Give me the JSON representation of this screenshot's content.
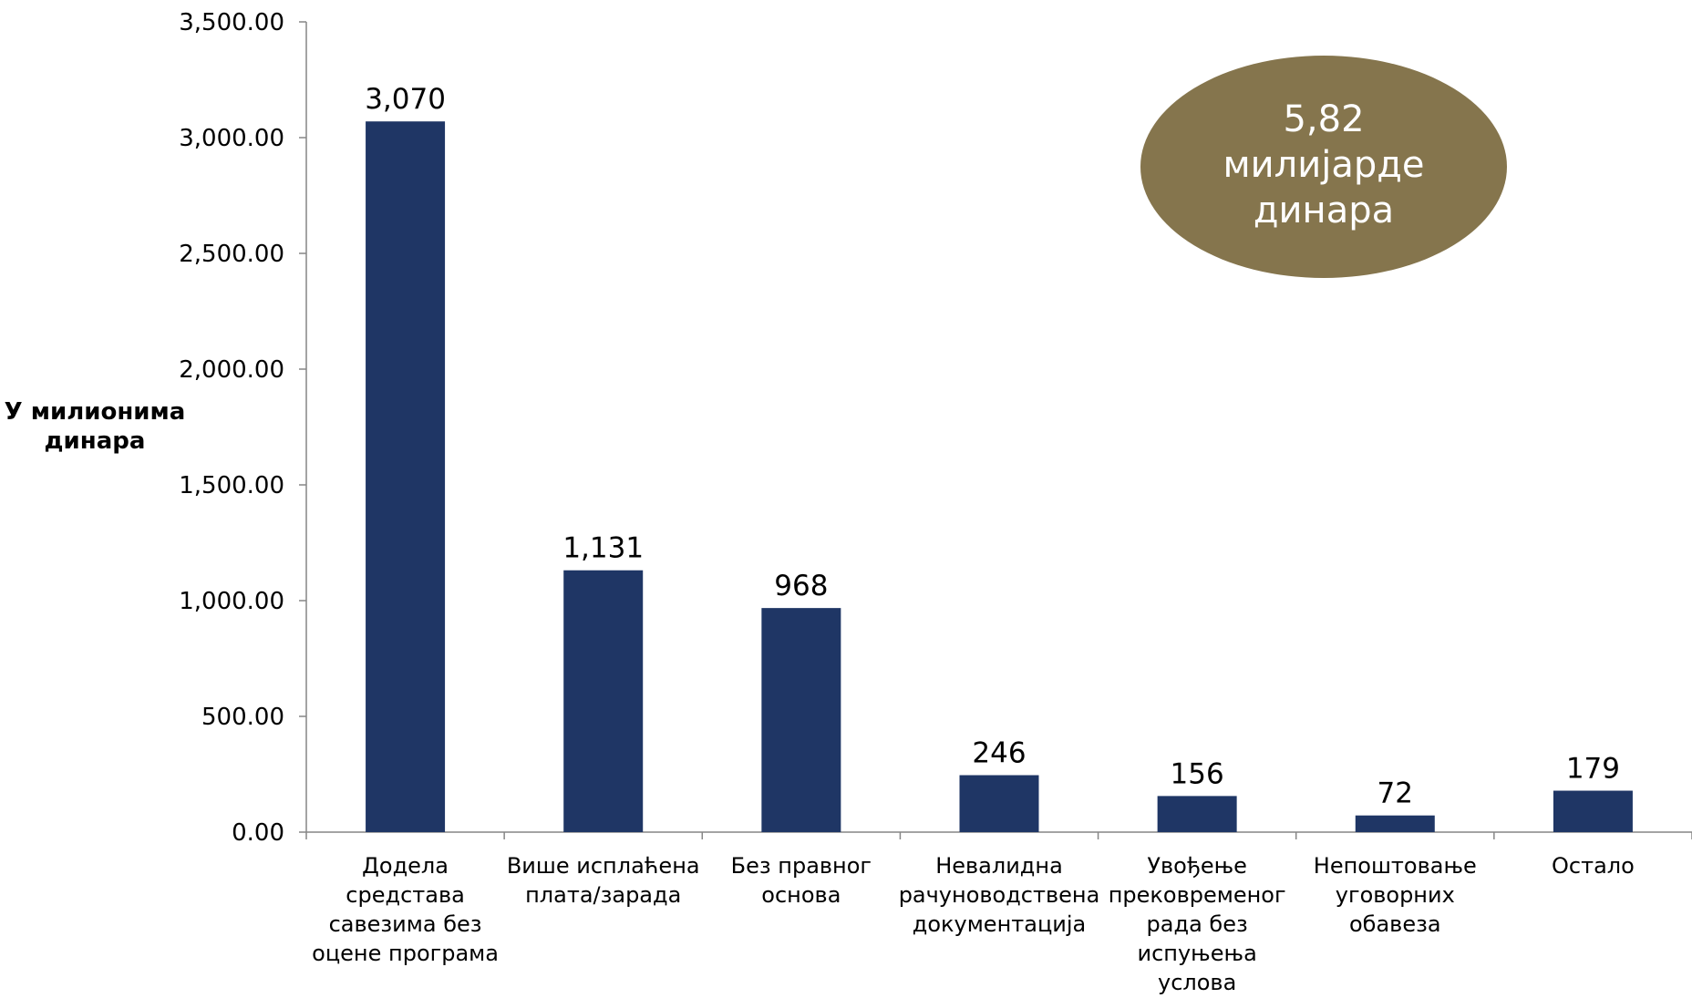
{
  "chart_data": {
    "type": "bar",
    "categories": [
      [
        "Додела",
        "средстава",
        "савезима без",
        "оцене програма"
      ],
      [
        "Више исплаћена",
        "плата/зарада"
      ],
      [
        "Без правног",
        "основа"
      ],
      [
        "Невалидна",
        "рачуноводствена",
        "документација"
      ],
      [
        "Увођење",
        "прековременог",
        "рада без",
        "испуњења",
        "услова"
      ],
      [
        "Непоштовање",
        "уговорних",
        "обавеза"
      ],
      [
        "Остало"
      ]
    ],
    "values": [
      3070,
      1131,
      968,
      246,
      156,
      72,
      179
    ],
    "value_labels": [
      "3,070",
      "1,131",
      "968",
      "246",
      "156",
      "72",
      "179"
    ],
    "ylim": [
      0,
      3500
    ],
    "yticks": [
      0,
      500,
      1000,
      1500,
      2000,
      2500,
      3000,
      3500
    ],
    "ytick_labels": [
      "0.00",
      "500.00",
      "1,000.00",
      "1,500.00",
      "2,000.00",
      "2,500.00",
      "3,000.00",
      "3,500.00"
    ],
    "ylabel_lines": [
      "У милионима",
      "динара"
    ],
    "xlabel": "",
    "title": "",
    "grid": false,
    "bar_color": "#1f3665",
    "axis_color": "#868686",
    "annotation": {
      "lines": [
        "5,82",
        "милијарде",
        "динара"
      ],
      "fill": "#85754d",
      "text_color": "#ffffff"
    }
  }
}
